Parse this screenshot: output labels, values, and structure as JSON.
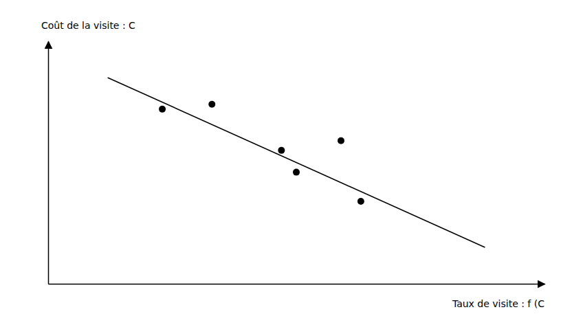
{
  "chart_data": {
    "type": "scatter",
    "xlabel": "Taux de visite : f (C",
    "ylabel": "Coût de la visite : C",
    "xlim": [
      0,
      10
    ],
    "ylim": [
      0,
      10
    ],
    "tick_labels": false,
    "series": [
      {
        "type": "line",
        "color": "#000000",
        "x": [
          1.2,
          8.8
        ],
        "values": [
          8.5,
          1.5
        ]
      },
      {
        "type": "scatter",
        "color": "#000000",
        "x": [
          2.3,
          3.3,
          4.7,
          5.9,
          5.0,
          6.3
        ],
        "values": [
          7.2,
          7.4,
          5.5,
          5.9,
          4.6,
          3.4
        ]
      }
    ]
  }
}
